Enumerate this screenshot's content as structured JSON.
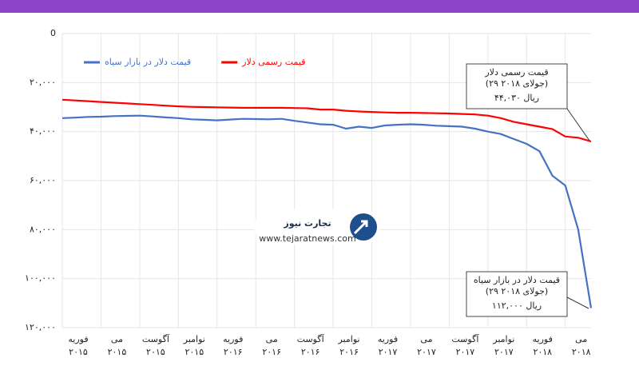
{
  "chart_data": {
    "type": "line",
    "x": [
      "2015-02",
      "2015-03",
      "2015-04",
      "2015-05",
      "2015-06",
      "2015-07",
      "2015-08",
      "2015-09",
      "2015-10",
      "2015-11",
      "2015-12",
      "2016-01",
      "2016-02",
      "2016-03",
      "2016-04",
      "2016-05",
      "2016-06",
      "2016-07",
      "2016-08",
      "2016-09",
      "2016-10",
      "2016-11",
      "2016-12",
      "2017-01",
      "2017-02",
      "2017-03",
      "2017-04",
      "2017-05",
      "2017-06",
      "2017-07",
      "2017-08",
      "2017-09",
      "2017-10",
      "2017-11",
      "2017-12",
      "2018-01",
      "2018-02",
      "2018-03",
      "2018-04",
      "2018-05",
      "2018-06",
      "2018-07"
    ],
    "series": [
      {
        "name": "قیمت دلار در بازار سیاه",
        "color": "#4472c4",
        "values": [
          34500,
          34300,
          34000,
          33900,
          33700,
          33600,
          33500,
          33800,
          34200,
          34500,
          35000,
          35200,
          35400,
          35100,
          34800,
          34900,
          35000,
          34800,
          35600,
          36300,
          37000,
          37200,
          38800,
          38000,
          38500,
          37500,
          37200,
          37000,
          37200,
          37600,
          37800,
          38000,
          38800,
          40000,
          41000,
          43000,
          45000,
          48000,
          58000,
          62000,
          80000,
          112000
        ]
      },
      {
        "name": "قیمت رسمی دلار",
        "color": "#ff0000",
        "values": [
          27000,
          27300,
          27600,
          27900,
          28200,
          28500,
          28800,
          29100,
          29400,
          29700,
          29900,
          30000,
          30100,
          30200,
          30300,
          30300,
          30300,
          30300,
          30400,
          30500,
          31000,
          31000,
          31500,
          31800,
          32000,
          32200,
          32300,
          32300,
          32400,
          32500,
          32600,
          32800,
          33000,
          33500,
          34500,
          36000,
          37000,
          38000,
          39000,
          42000,
          42500,
          44030
        ]
      }
    ],
    "ylim": [
      0,
      120000
    ],
    "inverted": true,
    "yticks": [
      0,
      {
        "value": 20000,
        "label": "۲۰,۰۰۰"
      },
      {
        "value": 40000,
        "label": "۴۰,۰۰۰"
      },
      {
        "value": 60000,
        "label": "۶۰,۰۰۰"
      },
      {
        "value": 80000,
        "label": "۸۰,۰۰۰"
      },
      {
        "value": 100000,
        "label": "۱۰۰,۰۰۰"
      },
      {
        "value": 120000,
        "label": "۱۲۰,۰۰۰"
      }
    ],
    "xticks": [
      {
        "value": "2015-02",
        "label": [
          "فوریه",
          "۲۰۱۵"
        ]
      },
      {
        "value": "2015-05",
        "label": [
          "می",
          "۲۰۱۵"
        ]
      },
      {
        "value": "2015-08",
        "label": [
          "آگوست",
          "۲۰۱۵"
        ]
      },
      {
        "value": "2015-11",
        "label": [
          "نوامبر",
          "۲۰۱۵"
        ]
      },
      {
        "value": "2016-02",
        "label": [
          "فوریه",
          "۲۰۱۶"
        ]
      },
      {
        "value": "2016-05",
        "label": [
          "می",
          "۲۰۱۶"
        ]
      },
      {
        "value": "2016-08",
        "label": [
          "آگوست",
          "۲۰۱۶"
        ]
      },
      {
        "value": "2016-11",
        "label": [
          "نوامبر",
          "۲۰۱۶"
        ]
      },
      {
        "value": "2017-02",
        "label": [
          "فوریه",
          "۲۰۱۷"
        ]
      },
      {
        "value": "2017-05",
        "label": [
          "می",
          "۲۰۱۷"
        ]
      },
      {
        "value": "2017-08",
        "label": [
          "آگوست",
          "۲۰۱۷"
        ]
      },
      {
        "value": "2017-11",
        "label": [
          "نوامبر",
          "۲۰۱۷"
        ]
      },
      {
        "value": "2018-02",
        "label": [
          "فوریه",
          "۲۰۱۸"
        ]
      },
      {
        "value": "2018-05",
        "label": [
          "می",
          "۲۰۱۸"
        ]
      }
    ],
    "grid": true,
    "legend": "top-left",
    "annotations": [
      [
        "قیمت رسمی دلار",
        "(۲۹ جولای ۲۰۱۸)",
        "۴۴,۰۳۰ ریال"
      ],
      [
        "قیمت دلار در بازار سیاه",
        "(۲۹ جولای ۲۰۱۸)",
        "۱۱۲,۰۰۰ ریال"
      ]
    ]
  },
  "logo": {
    "name": "تجارت نیوز",
    "url": "www.tejaratnews.com"
  }
}
